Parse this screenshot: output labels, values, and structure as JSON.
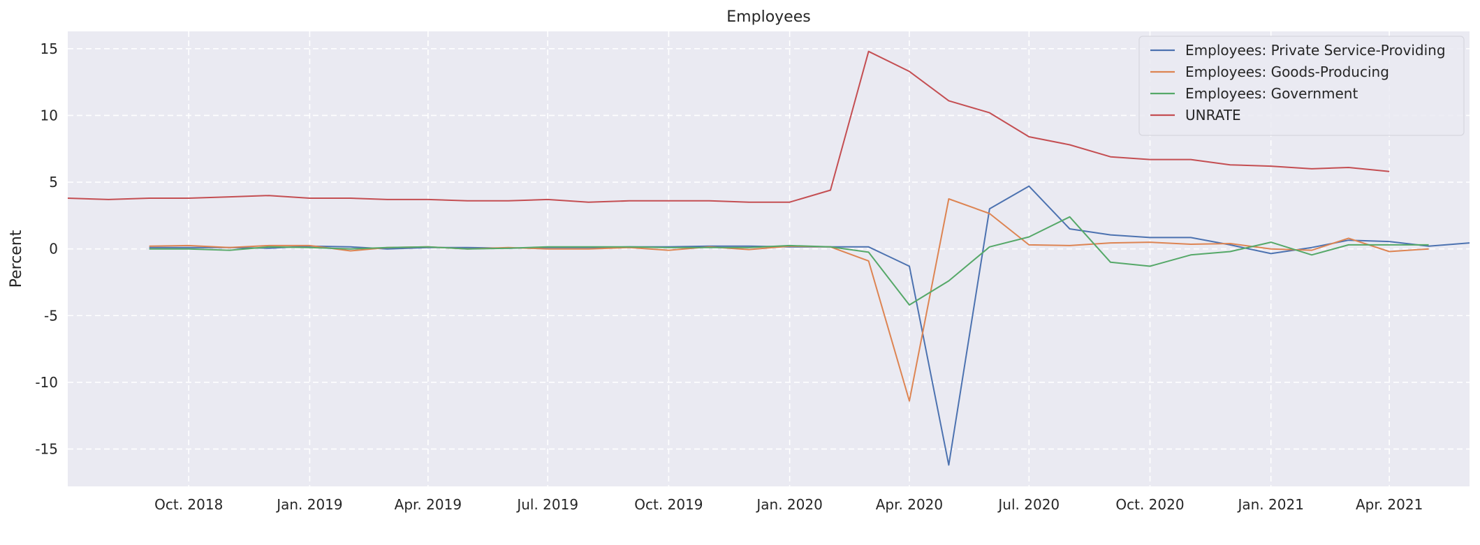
{
  "chart_data": {
    "type": "line",
    "title": "Employees",
    "xlabel": "",
    "ylabel": "Percent",
    "ylim": [
      -17.8,
      16.3
    ],
    "xlim": [
      "2018-07-01",
      "2021-06-01"
    ],
    "yticks": [
      15,
      10,
      5,
      0,
      -5,
      -10,
      -15
    ],
    "ytick_labels": [
      "15",
      "10",
      "5",
      "0",
      "-5",
      "-10",
      "-15"
    ],
    "xticks": [
      "2018-10-01",
      "2019-01-01",
      "2019-04-01",
      "2019-07-01",
      "2019-10-01",
      "2020-01-01",
      "2020-04-01",
      "2020-07-01",
      "2020-10-01",
      "2021-01-01",
      "2021-04-01"
    ],
    "xtick_labels": [
      "Oct. 2018",
      "Jan. 2019",
      "Apr. 2019",
      "Jul. 2019",
      "Oct. 2019",
      "Jan. 2020",
      "Apr. 2020",
      "Jul. 2020",
      "Oct. 2020",
      "Jan. 2021",
      "Apr. 2021"
    ],
    "grid": true,
    "legend_position": "top-right",
    "x": [
      "2018-07-01",
      "2018-08-01",
      "2018-09-01",
      "2018-10-01",
      "2018-11-01",
      "2018-12-01",
      "2019-01-01",
      "2019-02-01",
      "2019-03-01",
      "2019-04-01",
      "2019-05-01",
      "2019-06-01",
      "2019-07-01",
      "2019-08-01",
      "2019-09-01",
      "2019-10-01",
      "2019-11-01",
      "2019-12-01",
      "2020-01-01",
      "2020-02-01",
      "2020-03-01",
      "2020-04-01",
      "2020-05-01",
      "2020-06-01",
      "2020-07-01",
      "2020-08-01",
      "2020-09-01",
      "2020-10-01",
      "2020-11-01",
      "2020-12-01",
      "2021-01-01",
      "2021-02-01",
      "2021-03-01",
      "2021-04-01",
      "2021-05-01",
      "2021-06-01"
    ],
    "series": [
      {
        "name": "Employees: Private Service-Providing",
        "color": "#4c72b0",
        "values": [
          null,
          null,
          0.1,
          0.1,
          0.1,
          0.05,
          0.2,
          0.15,
          0.0,
          0.1,
          0.1,
          0.05,
          0.1,
          0.1,
          0.15,
          0.15,
          0.2,
          0.2,
          0.15,
          0.15,
          0.15,
          -1.3,
          -16.2,
          3.0,
          4.7,
          1.5,
          1.05,
          0.85,
          0.85,
          0.3,
          -0.35,
          0.1,
          0.65,
          0.55,
          0.2,
          0.45
        ]
      },
      {
        "name": "Employees: Goods-Producing",
        "color": "#dd8452",
        "values": [
          null,
          null,
          0.2,
          0.25,
          0.1,
          0.25,
          0.25,
          -0.15,
          0.1,
          0.15,
          0.0,
          0.1,
          0.0,
          0.0,
          0.1,
          -0.1,
          0.15,
          -0.05,
          0.2,
          0.15,
          -0.9,
          -11.4,
          3.75,
          2.65,
          0.3,
          0.25,
          0.45,
          0.5,
          0.35,
          0.4,
          0.0,
          -0.1,
          0.8,
          -0.2,
          0.0,
          null
        ]
      },
      {
        "name": "Employees: Government",
        "color": "#55a868",
        "values": [
          null,
          null,
          0.0,
          0.0,
          -0.1,
          0.15,
          0.1,
          0.0,
          0.1,
          0.15,
          0.0,
          0.05,
          0.15,
          0.15,
          0.15,
          0.1,
          0.1,
          0.1,
          0.25,
          0.15,
          -0.25,
          -4.2,
          -2.4,
          0.15,
          0.9,
          2.4,
          -1.0,
          -1.3,
          -0.45,
          -0.2,
          0.5,
          -0.45,
          0.3,
          0.3,
          0.3,
          null
        ]
      },
      {
        "name": "UNRATE",
        "color": "#c44e52",
        "values": [
          3.8,
          3.7,
          3.8,
          3.8,
          3.9,
          4.0,
          3.8,
          3.8,
          3.7,
          3.7,
          3.6,
          3.6,
          3.7,
          3.5,
          3.6,
          3.6,
          3.6,
          3.5,
          3.5,
          4.4,
          14.8,
          13.3,
          11.1,
          10.2,
          8.4,
          7.8,
          6.9,
          6.7,
          6.7,
          6.3,
          6.2,
          6.0,
          6.1,
          5.8,
          null,
          null
        ]
      }
    ]
  }
}
